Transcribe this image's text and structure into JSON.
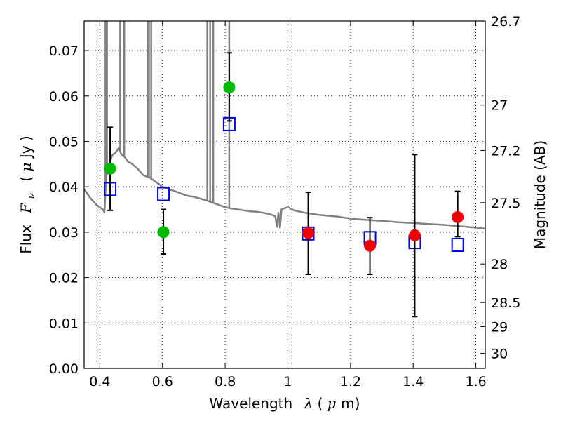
{
  "chart_data": {
    "type": "scatter",
    "xlabel": {
      "prefix": "Wavelength",
      "symbol": "λ",
      "unit_open": " (",
      "unit_mu": "μ",
      "unit_rest": "m)"
    },
    "ylabel": {
      "prefix": "Flux",
      "symbol": "F",
      "subscript": "ν",
      "unit_open": "( ",
      "unit_mu": "μ",
      "unit_rest": "Jy )"
    },
    "y2label": "Magnitude (AB)",
    "xlim": [
      0.35,
      1.63
    ],
    "ylim": [
      0.0,
      0.0765
    ],
    "grid": true,
    "x_ticks": [
      {
        "value": 0.4,
        "label": "0.4"
      },
      {
        "value": 0.6,
        "label": "0.6"
      },
      {
        "value": 0.8,
        "label": "0.8"
      },
      {
        "value": 1.0,
        "label": "1"
      },
      {
        "value": 1.2,
        "label": "1.2"
      },
      {
        "value": 1.4,
        "label": "1.4"
      },
      {
        "value": 1.6,
        "label": "1.6"
      }
    ],
    "y_ticks": [
      {
        "value": 0.0,
        "label": "0.00"
      },
      {
        "value": 0.01,
        "label": "0.01"
      },
      {
        "value": 0.02,
        "label": "0.02"
      },
      {
        "value": 0.03,
        "label": "0.03"
      },
      {
        "value": 0.04,
        "label": "0.04"
      },
      {
        "value": 0.05,
        "label": "0.05"
      },
      {
        "value": 0.06,
        "label": "0.06"
      },
      {
        "value": 0.07,
        "label": "0.07"
      }
    ],
    "y2_ticks": [
      {
        "flux": 0.0765,
        "label": "26.7"
      },
      {
        "flux": 0.058,
        "label": "27"
      },
      {
        "flux": 0.048,
        "label": "27.2"
      },
      {
        "flux": 0.0365,
        "label": "27.5"
      },
      {
        "flux": 0.023,
        "label": "28"
      },
      {
        "flux": 0.0145,
        "label": "28.5"
      },
      {
        "flux": 0.0092,
        "label": "29"
      },
      {
        "flux": 0.0033,
        "label": "30"
      }
    ],
    "series": [
      {
        "kind": "line",
        "color": "#808080",
        "points": [
          [
            0.35,
            0.0395
          ],
          [
            0.37,
            0.0375
          ],
          [
            0.39,
            0.036
          ],
          [
            0.41,
            0.035
          ],
          [
            0.415,
            0.0343
          ],
          [
            0.42,
            0.042
          ],
          [
            0.43,
            0.045
          ],
          [
            0.44,
            0.047
          ],
          [
            0.45,
            0.0475
          ],
          [
            0.46,
            0.0485
          ],
          [
            0.47,
            0.047
          ],
          [
            0.48,
            0.0465
          ],
          [
            0.49,
            0.0455
          ],
          [
            0.5,
            0.0452
          ],
          [
            0.52,
            0.044
          ],
          [
            0.54,
            0.0425
          ],
          [
            0.56,
            0.042
          ],
          [
            0.58,
            0.041
          ],
          [
            0.6,
            0.04
          ],
          [
            0.62,
            0.0395
          ],
          [
            0.64,
            0.039
          ],
          [
            0.66,
            0.0385
          ],
          [
            0.68,
            0.038
          ],
          [
            0.7,
            0.0378
          ],
          [
            0.72,
            0.0374
          ],
          [
            0.74,
            0.037
          ],
          [
            0.76,
            0.0365
          ],
          [
            0.78,
            0.036
          ],
          [
            0.8,
            0.0355
          ],
          [
            0.82,
            0.0352
          ],
          [
            0.84,
            0.035
          ],
          [
            0.86,
            0.0348
          ],
          [
            0.88,
            0.0346
          ],
          [
            0.9,
            0.0345
          ],
          [
            0.92,
            0.0343
          ],
          [
            0.94,
            0.034
          ],
          [
            0.95,
            0.0338
          ],
          [
            0.96,
            0.0335
          ],
          [
            0.965,
            0.0312
          ],
          [
            0.97,
            0.0343
          ],
          [
            0.975,
            0.031
          ],
          [
            0.98,
            0.035
          ],
          [
            0.99,
            0.0353
          ],
          [
            1.0,
            0.0355
          ],
          [
            1.02,
            0.0348
          ],
          [
            1.04,
            0.0345
          ],
          [
            1.06,
            0.0342
          ],
          [
            1.08,
            0.034
          ],
          [
            1.1,
            0.0338
          ],
          [
            1.15,
            0.0335
          ],
          [
            1.2,
            0.033
          ],
          [
            1.25,
            0.0327
          ],
          [
            1.3,
            0.0325
          ],
          [
            1.35,
            0.0322
          ],
          [
            1.4,
            0.032
          ],
          [
            1.45,
            0.0318
          ],
          [
            1.5,
            0.0316
          ],
          [
            1.55,
            0.0313
          ],
          [
            1.6,
            0.031
          ],
          [
            1.63,
            0.0308
          ]
        ],
        "spikes": [
          0.418,
          0.423,
          0.465,
          0.478,
          0.552,
          0.557,
          0.564,
          0.743,
          0.752,
          0.762,
          0.813
        ]
      },
      {
        "kind": "open-square",
        "color": "#0000ee",
        "points": [
          {
            "x": 0.433,
            "y": 0.0395
          },
          {
            "x": 0.603,
            "y": 0.0384
          },
          {
            "x": 0.813,
            "y": 0.0538
          },
          {
            "x": 1.065,
            "y": 0.0297
          },
          {
            "x": 1.262,
            "y": 0.0287
          },
          {
            "x": 1.405,
            "y": 0.0278
          },
          {
            "x": 1.542,
            "y": 0.0272
          }
        ]
      },
      {
        "kind": "filled-circle",
        "color": "#00bb00",
        "points": [
          {
            "x": 0.433,
            "y": 0.044,
            "err": [
              0.0348,
              0.0531
            ]
          },
          {
            "x": 0.603,
            "y": 0.03,
            "err": [
              0.0252,
              0.035
            ]
          },
          {
            "x": 0.813,
            "y": 0.0619,
            "err": [
              0.0545,
              0.0695
            ]
          }
        ]
      },
      {
        "kind": "filled-circle",
        "color": "#ee0000",
        "points": [
          {
            "x": 1.065,
            "y": 0.0298,
            "err": [
              0.0207,
              0.0388
            ]
          },
          {
            "x": 1.262,
            "y": 0.027,
            "err": [
              0.0207,
              0.0332
            ]
          },
          {
            "x": 1.405,
            "y": 0.0293,
            "err": [
              0.0114,
              0.0471
            ]
          },
          {
            "x": 1.542,
            "y": 0.0333,
            "err": [
              0.029,
              0.039
            ]
          }
        ]
      }
    ]
  }
}
